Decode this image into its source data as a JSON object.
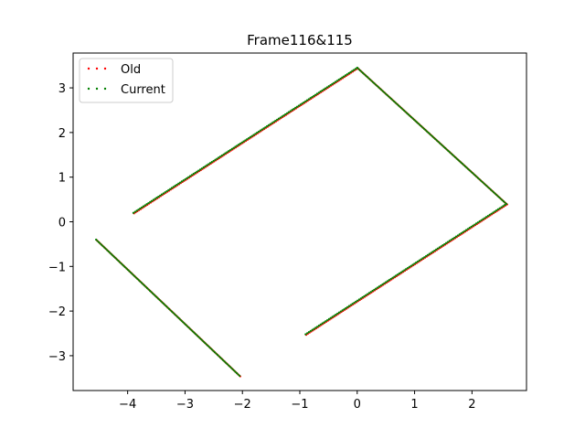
{
  "chart_data": {
    "type": "scatter",
    "title": "Frame116&115",
    "xlabel": "",
    "ylabel": "",
    "xlim": [
      -4.95,
      2.95
    ],
    "ylim": [
      -3.78,
      3.78
    ],
    "grid": false,
    "legend_position": "upper-left",
    "x_ticks": [
      -4,
      -3,
      -2,
      -1,
      0,
      1,
      2
    ],
    "x_tick_labels": [
      "−4",
      "−3",
      "−2",
      "−1",
      "0",
      "1",
      "2"
    ],
    "y_ticks": [
      -3,
      -2,
      -1,
      0,
      1,
      2,
      3
    ],
    "y_tick_labels": [
      "−3",
      "−2",
      "−1",
      "0",
      "1",
      "2",
      "3"
    ],
    "segments": [
      {
        "from": [
          -4.55,
          -0.4
        ],
        "to": [
          -2.05,
          -3.45
        ]
      },
      {
        "from": [
          -3.9,
          0.2
        ],
        "to": [
          0.0,
          3.45
        ]
      },
      {
        "from": [
          0.0,
          3.45
        ],
        "to": [
          2.6,
          0.4
        ]
      },
      {
        "from": [
          2.6,
          0.4
        ],
        "to": [
          -0.9,
          -2.52
        ]
      }
    ],
    "series": [
      {
        "name": "Old",
        "color": "#ff0000"
      },
      {
        "name": "Current",
        "color": "#008000"
      }
    ]
  }
}
